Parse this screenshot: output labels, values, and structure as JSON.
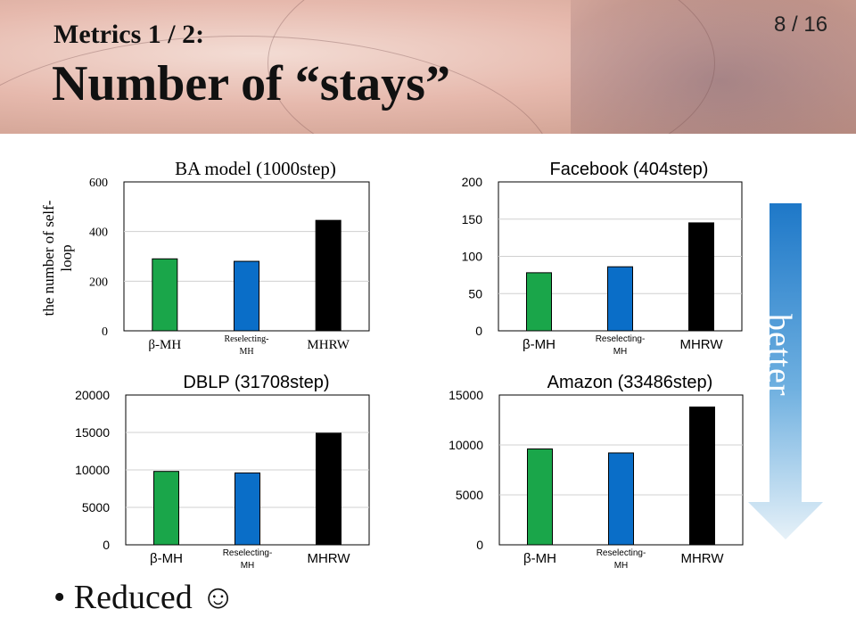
{
  "slide": {
    "subtitle": "Metrics 1 / 2:",
    "title": "Number of “stays”",
    "page": "8 / 16",
    "better": "better",
    "bullet": "• Reduced ☺"
  },
  "colors": {
    "beta_mh": "#1aa64a",
    "reselecting_mh": "#0a6ec8",
    "mhrw": "#000000"
  },
  "chart_data": [
    {
      "type": "bar",
      "title": "BA model (1000step)",
      "ylabel": "the number of self-loop",
      "categories": [
        "β-MH",
        "Reselecting-MH",
        "MHRW"
      ],
      "values": [
        290,
        280,
        445
      ],
      "ylim": [
        0,
        600
      ],
      "yticks": [
        "0",
        "200",
        "400",
        "600"
      ]
    },
    {
      "type": "bar",
      "title": "Facebook (404step)",
      "ylabel": "",
      "categories": [
        "β-MH",
        "Reselecting-MH",
        "MHRW"
      ],
      "values": [
        78,
        86,
        145
      ],
      "ylim": [
        0,
        200
      ],
      "yticks": [
        "0",
        "50",
        "100",
        "150",
        "200"
      ]
    },
    {
      "type": "bar",
      "title": "DBLP (31708step)",
      "ylabel": "",
      "categories": [
        "β-MH",
        "Reselecting-MH",
        "MHRW"
      ],
      "values": [
        9800,
        9600,
        14900
      ],
      "ylim": [
        0,
        20000
      ],
      "yticks": [
        "0",
        "5000",
        "10000",
        "15000",
        "20000"
      ]
    },
    {
      "type": "bar",
      "title": "Amazon (33486step)",
      "ylabel": "",
      "categories": [
        "β-MH",
        "Reselecting-MH",
        "MHRW"
      ],
      "values": [
        9600,
        9200,
        13800
      ],
      "ylim": [
        0,
        15000
      ],
      "yticks": [
        "0",
        "5000",
        "10000",
        "15000"
      ]
    }
  ]
}
